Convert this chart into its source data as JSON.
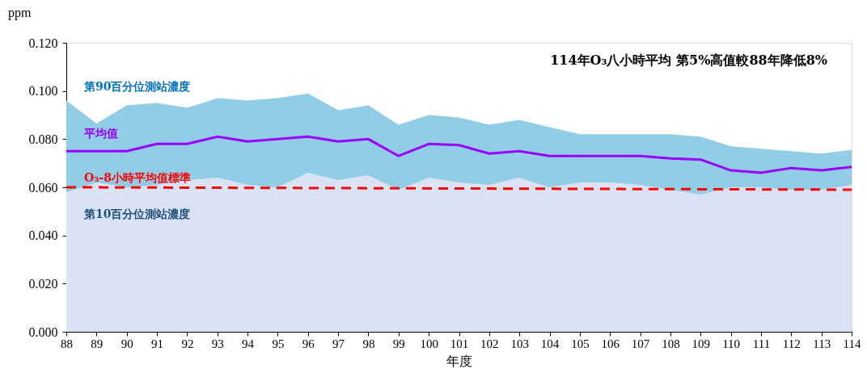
{
  "chart_data": {
    "type": "line",
    "xlabel": "年度",
    "ylabel": "ppm",
    "x": [
      88,
      89,
      90,
      91,
      92,
      93,
      94,
      95,
      96,
      97,
      98,
      99,
      100,
      101,
      102,
      103,
      104,
      105,
      106,
      107,
      108,
      109,
      110,
      111,
      112,
      113,
      114
    ],
    "xlim": [
      88,
      114
    ],
    "xticks": [
      88,
      89,
      90,
      91,
      92,
      93,
      94,
      95,
      96,
      97,
      98,
      99,
      100,
      101,
      102,
      103,
      104,
      105,
      106,
      107,
      108,
      109,
      110,
      111,
      112,
      113,
      114
    ],
    "ylim": [
      0,
      0.12
    ],
    "yticks": [
      {
        "value": 0,
        "label": "0.000"
      },
      {
        "value": 0.02,
        "label": "0.020"
      },
      {
        "value": 0.04,
        "label": "0.040"
      },
      {
        "value": 0.06,
        "label": "0.060"
      },
      {
        "value": 0.08,
        "label": "0.080"
      },
      {
        "value": 0.1,
        "label": "0.100"
      },
      {
        "value": 0.12,
        "label": "0.120"
      }
    ],
    "series": [
      {
        "name": "第90百分位測站濃度",
        "type": "area",
        "color": "#92cde8",
        "values": [
          0.096,
          0.0865,
          0.094,
          0.095,
          0.093,
          0.097,
          0.096,
          0.097,
          0.099,
          0.092,
          0.094,
          0.086,
          0.09,
          0.089,
          0.086,
          0.088,
          0.085,
          0.082,
          0.082,
          0.082,
          0.082,
          0.081,
          0.077,
          0.076,
          0.075,
          0.074,
          0.0755
        ]
      },
      {
        "name": "第10百分位測站濃度",
        "type": "area",
        "color": "#dae3f3",
        "values": [
          0.058,
          0.062,
          0.06,
          0.061,
          0.063,
          0.064,
          0.061,
          0.06,
          0.066,
          0.063,
          0.065,
          0.059,
          0.064,
          0.062,
          0.061,
          0.064,
          0.06,
          0.062,
          0.062,
          0.061,
          0.059,
          0.057,
          0.06,
          0.06,
          0.059,
          0.059,
          0.061
        ]
      },
      {
        "name": "平均值",
        "color": "#9900ff",
        "values": [
          0.075,
          0.075,
          0.075,
          0.078,
          0.078,
          0.081,
          0.079,
          0.08,
          0.081,
          0.079,
          0.08,
          0.073,
          0.078,
          0.0775,
          0.074,
          0.075,
          0.073,
          0.073,
          0.073,
          0.073,
          0.072,
          0.0715,
          0.067,
          0.066,
          0.068,
          0.067,
          0.0685
        ]
      },
      {
        "name": "O₃-8小時平均值標準",
        "type": "line",
        "line_style": "dashed",
        "color": "#ff0000",
        "x": [
          88,
          114
        ],
        "values": [
          0.06,
          0.059
        ]
      }
    ],
    "annotations": [
      "114年O₃八小時平均 第5%高值較88年降低8%"
    ]
  }
}
